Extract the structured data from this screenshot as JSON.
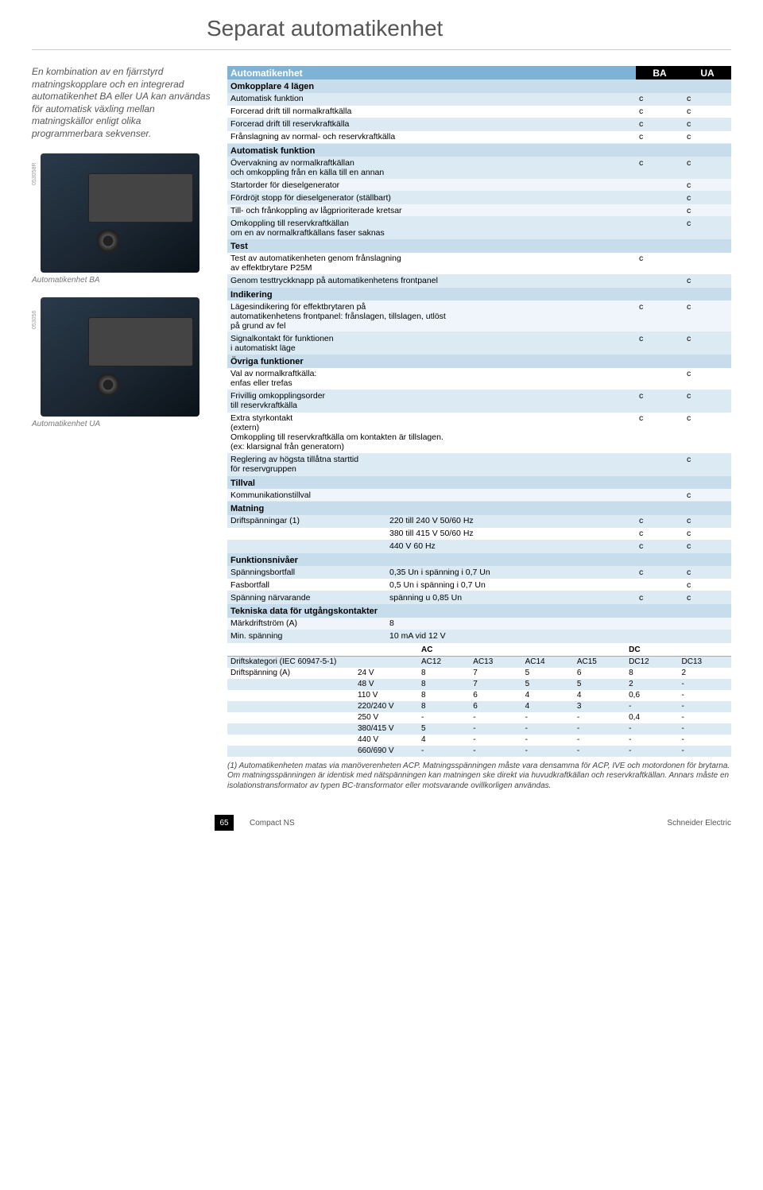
{
  "page": {
    "title": "Separat automatikenhet",
    "footer_center": "Compact NS",
    "footer_right": "Schneider Electric",
    "page_number": "65"
  },
  "left": {
    "intro": "En kombination av en fjärrstyrd matningskopplare och en integrerad automatikenhet BA eller UA kan användas för automatisk växling mellan matningskällor enligt olika programmerbara sekvenser.",
    "photo1_caption": "Automatikenhet BA",
    "photo2_caption": "Automatikenhet UA",
    "sidecode1": "053058R",
    "sidecode2": "053056"
  },
  "table": {
    "hdr_title": "Automatikenhet",
    "hdr_ba": "BA",
    "hdr_ua": "UA",
    "sections": [
      {
        "title": "Omkopplare 4 lägen",
        "rows": [
          {
            "label": "Automatisk funktion",
            "ba": "c",
            "ua": "c",
            "striped": true
          },
          {
            "label": "Forcerad drift till normalkraftkälla",
            "ba": "c",
            "ua": "c"
          },
          {
            "label": "Forcerad drift till reservkraftkälla",
            "ba": "c",
            "ua": "c",
            "striped": true
          },
          {
            "label": "Frånslagning av normal- och reservkraftkälla",
            "ba": "c",
            "ua": "c"
          }
        ]
      },
      {
        "title": "Automatisk funktion",
        "rows": [
          {
            "label": "Övervakning av normalkraftkällan\noch omkoppling från en källa till en annan",
            "ba": "c",
            "ua": "c",
            "striped": true
          },
          {
            "label": "Startorder för dieselgenerator",
            "ba": "",
            "ua": "c"
          },
          {
            "label": "Fördröjt stopp för dieselgenerator (ställbart)",
            "ba": "",
            "ua": "c",
            "striped": true
          },
          {
            "label": "Till- och frånkoppling av lågprioriterade kretsar",
            "ba": "",
            "ua": "c"
          },
          {
            "label": "Omkoppling till reservkraftkällan\nom en av normalkraftkällans faser saknas",
            "ba": "",
            "ua": "c",
            "striped": true
          }
        ]
      },
      {
        "title": "Test",
        "rows": [
          {
            "label": "Test av automatikenheten genom frånslagning\nav effektbrytare P25M",
            "ba": "c",
            "ua": ""
          },
          {
            "label": "Genom testtryckknapp på automatikenhetens frontpanel",
            "ba": "",
            "ua": "c",
            "striped": true
          }
        ]
      },
      {
        "title": "Indikering",
        "rows": [
          {
            "label": "Lägesindikering för effektbrytaren på\nautomatikenhetens frontpanel: frånslagen, tillslagen, utlöst\npå grund av fel",
            "ba": "c",
            "ua": "c"
          },
          {
            "label": "Signalkontakt för funktionen\ni automatiskt läge",
            "ba": "c",
            "ua": "c",
            "striped": true
          }
        ]
      },
      {
        "title": "Övriga funktioner",
        "rows": [
          {
            "label": "Val av normalkraftkälla:\nenfas eller trefas",
            "ba": "",
            "ua": "c"
          },
          {
            "label": "Frivillig omkopplingsorder\ntill reservkraftkälla",
            "ba": "c",
            "ua": "c",
            "striped": true
          },
          {
            "label": "Extra styrkontakt\n(extern)\nOmkoppling till reservkraftkälla om kontakten är tillslagen.\n(ex: klarsignal från generatorn)",
            "ba": "c",
            "ua": "c"
          },
          {
            "label": "Reglering av högsta tillåtna starttid\nför reservgruppen",
            "ba": "",
            "ua": "c",
            "striped": true
          }
        ]
      },
      {
        "title": "Tillval",
        "rows": [
          {
            "label": "Kommunikationstillval",
            "ba": "",
            "ua": "c"
          }
        ]
      },
      {
        "title": "Matning",
        "rows_extra": [
          {
            "label": "Driftspänningar (1)",
            "extra": "220 till 240 V 50/60 Hz",
            "ba": "c",
            "ua": "c",
            "striped": true
          },
          {
            "label": "",
            "extra": "380 till 415 V 50/60 Hz",
            "ba": "c",
            "ua": "c"
          },
          {
            "label": "",
            "extra": "440 V 60 Hz",
            "ba": "c",
            "ua": "c",
            "striped": true
          }
        ]
      },
      {
        "title": "Funktionsnivåer",
        "rows_extra": [
          {
            "label": "Spänningsbortfall",
            "extra": "0,35 Un i spänning i 0,7 Un",
            "ba": "c",
            "ua": "c",
            "striped": true
          },
          {
            "label": "Fasbortfall",
            "extra": "0,5 Un i spänning i 0,7 Un",
            "ba": "",
            "ua": "c"
          },
          {
            "label": "Spänning närvarande",
            "extra": "spänning u 0,85 Un",
            "ba": "c",
            "ua": "c",
            "striped": true
          }
        ]
      },
      {
        "title": "Tekniska data för utgångskontakter",
        "rows_extra": [
          {
            "label": "Märkdriftström (A)",
            "extra": "8",
            "ba": "",
            "ua": ""
          },
          {
            "label": "Min. spänning",
            "extra": "10 mA vid 12 V",
            "ba": "",
            "ua": "",
            "striped": true
          }
        ]
      }
    ]
  },
  "contacts": {
    "col_ac": "AC",
    "col_dc": "DC",
    "row_cat_label": "Driftskategori (IEC 60947-5-1)",
    "ac_cols": [
      "AC12",
      "AC13",
      "AC14",
      "AC15"
    ],
    "dc_cols": [
      "DC12",
      "DC13"
    ],
    "row_dv_label": "Driftspänning (A)",
    "rows": [
      {
        "v": "24 V",
        "c": [
          "8",
          "7",
          "5",
          "6",
          "8",
          "2"
        ]
      },
      {
        "v": "48 V",
        "c": [
          "8",
          "7",
          "5",
          "5",
          "2",
          "-"
        ]
      },
      {
        "v": "110 V",
        "c": [
          "8",
          "6",
          "4",
          "4",
          "0,6",
          "-"
        ]
      },
      {
        "v": "220/240 V",
        "c": [
          "8",
          "6",
          "4",
          "3",
          "-",
          "-"
        ]
      },
      {
        "v": "250 V",
        "c": [
          "-",
          "-",
          "-",
          "-",
          "0,4",
          "-"
        ]
      },
      {
        "v": "380/415 V",
        "c": [
          "5",
          "-",
          "-",
          "-",
          "-",
          "-"
        ]
      },
      {
        "v": "440 V",
        "c": [
          "4",
          "-",
          "-",
          "-",
          "-",
          "-"
        ]
      },
      {
        "v": "660/690 V",
        "c": [
          "-",
          "-",
          "-",
          "-",
          "-",
          "-"
        ]
      }
    ]
  },
  "footnote": "(1) Automatikenheten matas via manöverenheten ACP. Matningsspänningen måste vara densamma för ACP, IVE och motordonen för brytarna. Om matningsspänningen är identisk med nätspänningen kan matningen ske direkt via huvudkraftkällan och reservkraftkällan. Annars måste en isolationstransformator av typen BC-transformator eller motsvarande ovillkorligen användas."
}
